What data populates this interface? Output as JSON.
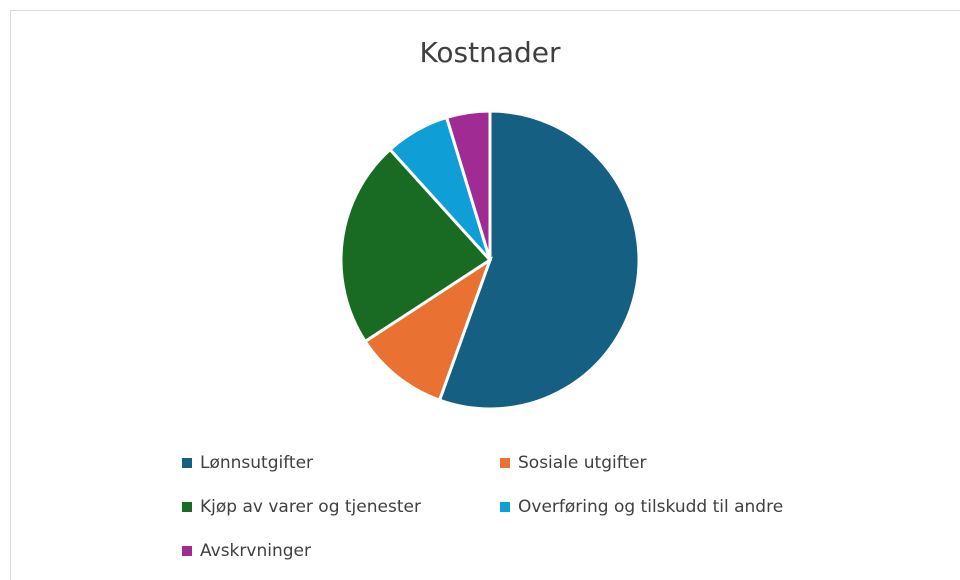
{
  "chart_data": {
    "type": "pie",
    "title": "Kostnader",
    "categories": [
      "Lønnsutgifter",
      "Sosiale utgifter",
      "Kjøp av varer og tjenester",
      "Overføring og tilskudd til andre",
      "Avskrvninger"
    ],
    "values": [
      55.5,
      10.3,
      22.5,
      7,
      4.7
    ],
    "colors": [
      "#156082",
      "#e97132",
      "#196b24",
      "#0f9ed5",
      "#a02b93"
    ],
    "legend": "bottom"
  }
}
